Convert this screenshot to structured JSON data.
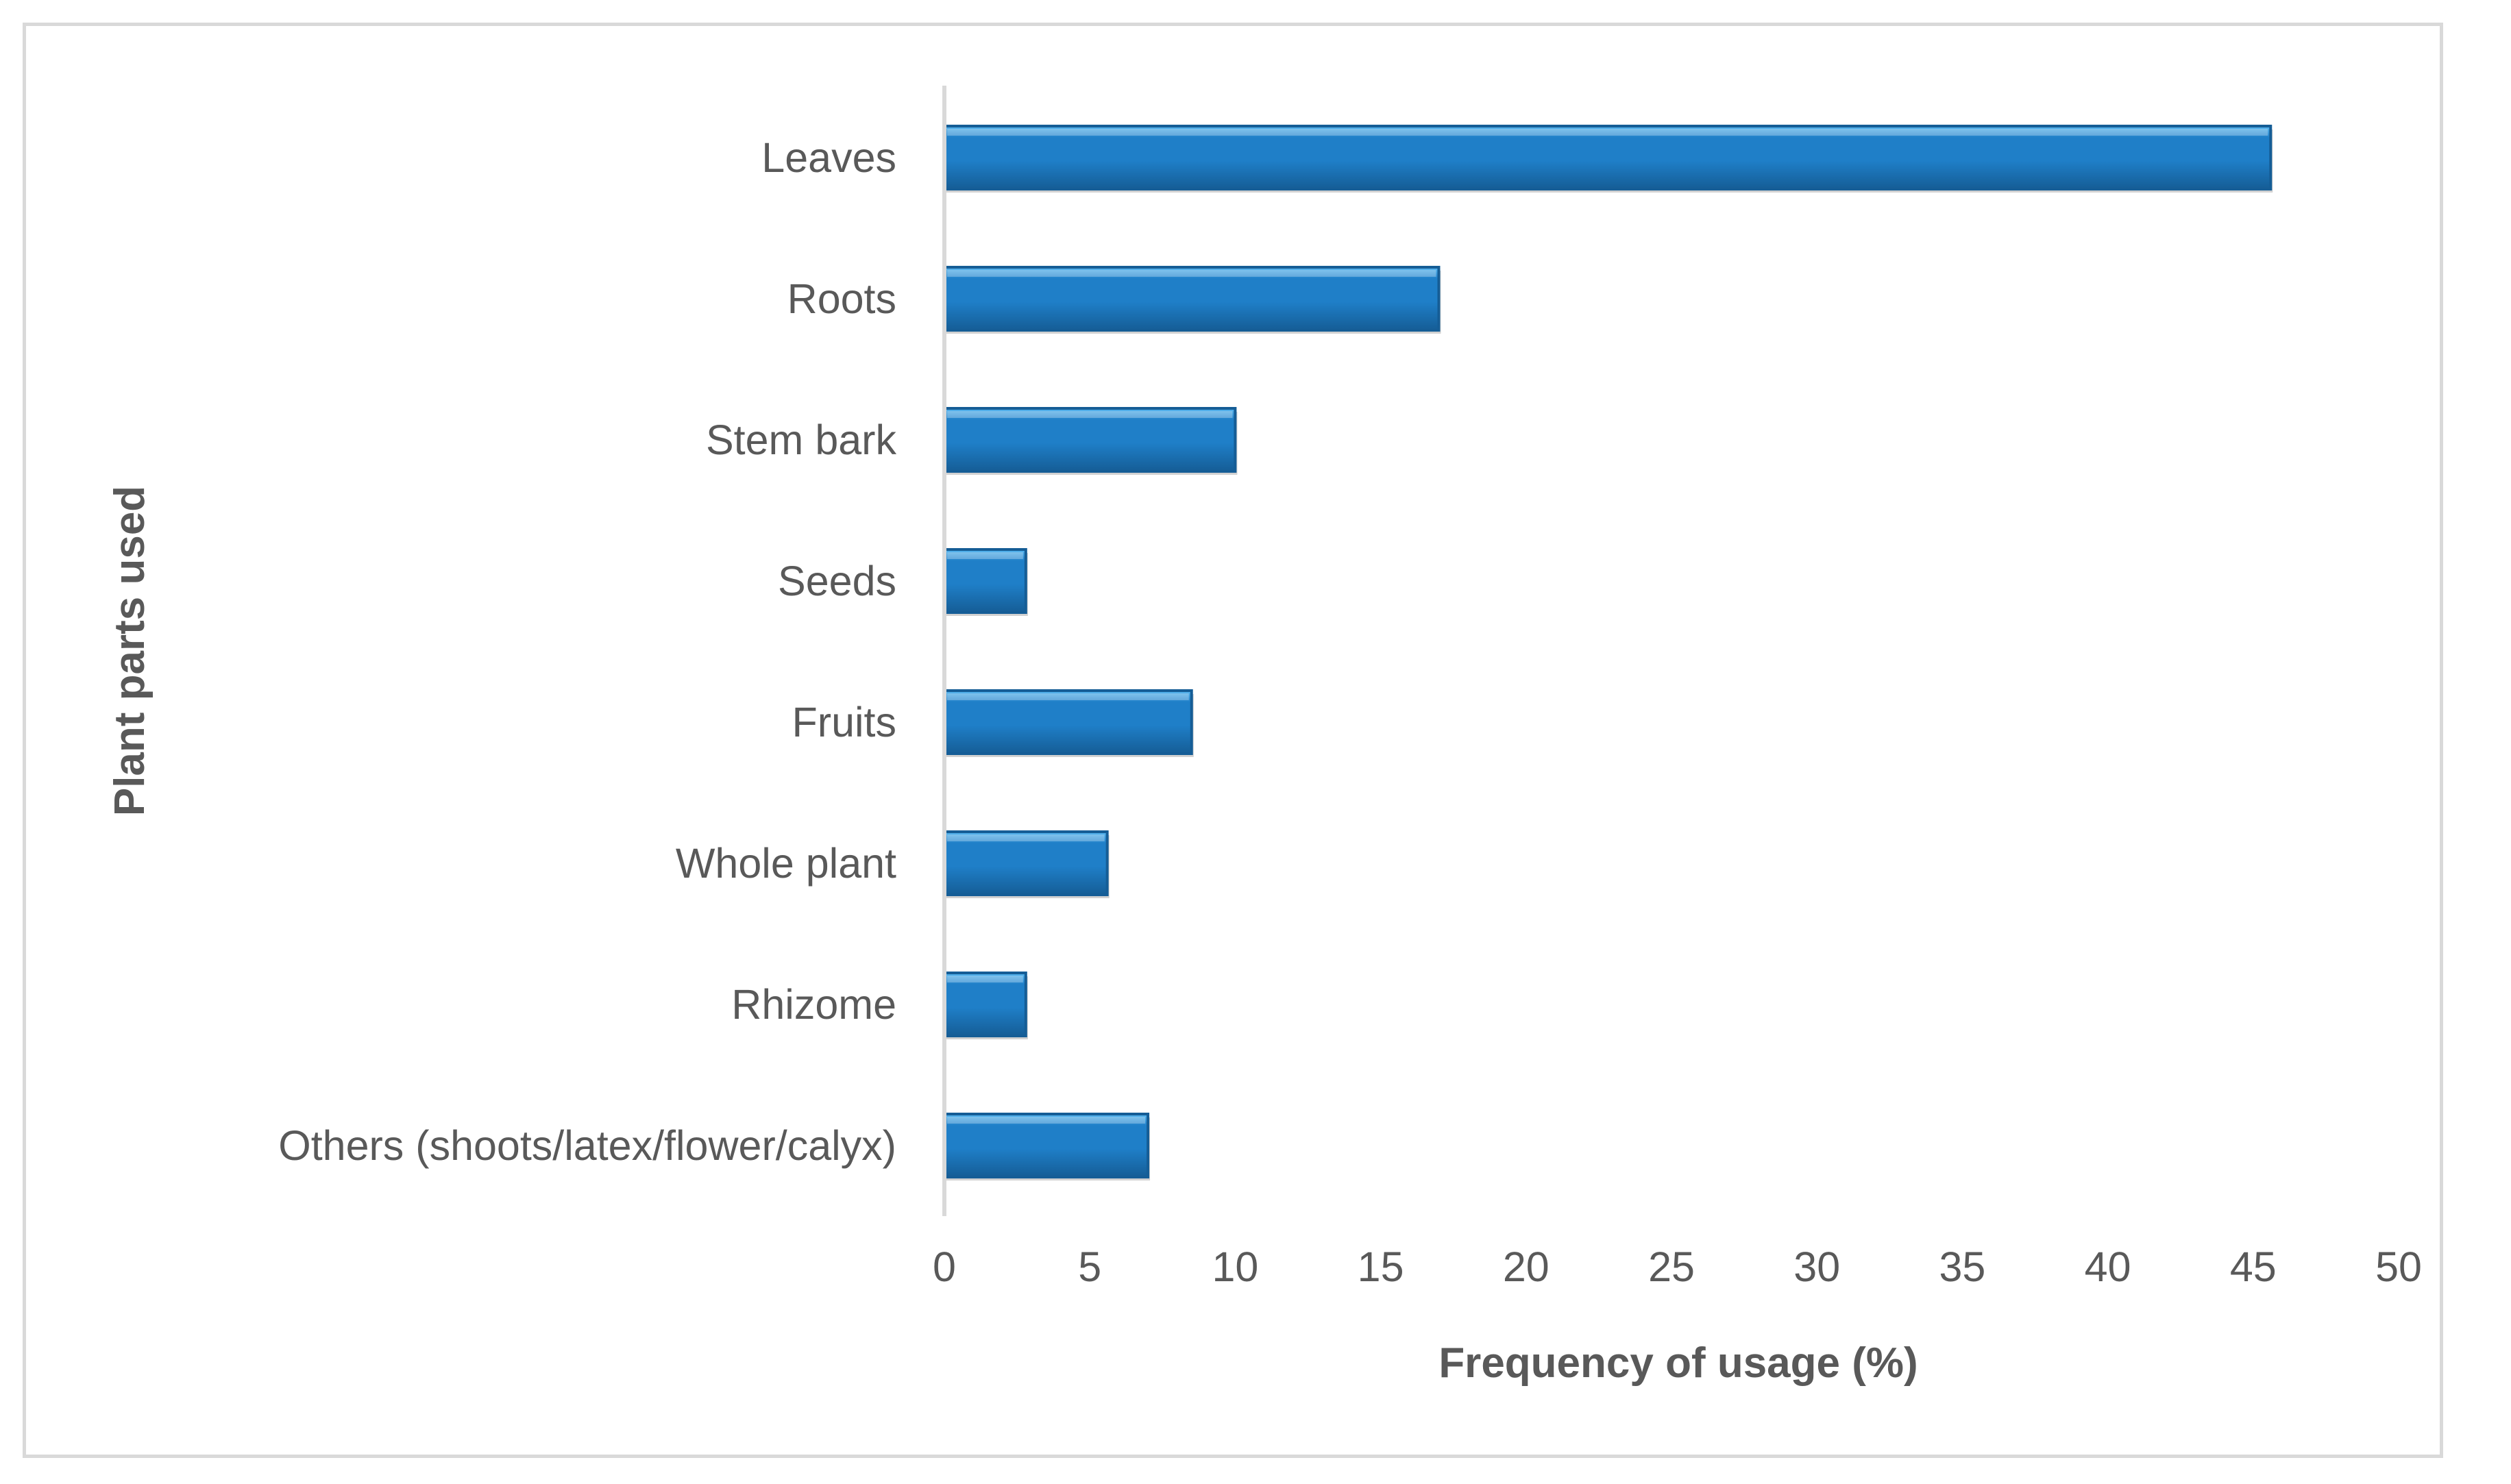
{
  "chart_data": {
    "type": "bar",
    "orientation": "horizontal",
    "categories": [
      "Leaves",
      "Roots",
      "Stem bark",
      "Seeds",
      "Fruits",
      "Whole plant",
      "Rhizome",
      "Others (shoots/latex/flower/calyx)"
    ],
    "values": [
      45.6,
      17.0,
      10.0,
      2.8,
      8.5,
      5.6,
      2.8,
      7.0
    ],
    "xlabel": "Frequency of usage (%)",
    "ylabel": "Plant parts used",
    "xlim": [
      0,
      50
    ],
    "xticks": [
      "0",
      "5",
      "10",
      "15",
      "20",
      "25",
      "30",
      "35",
      "40",
      "45",
      "50"
    ],
    "grid": false,
    "legend": "none",
    "bar_color": "#1f7fc8",
    "bar_edge_color": "#155d96",
    "bar_highlight_color": "#5ab8f0"
  }
}
